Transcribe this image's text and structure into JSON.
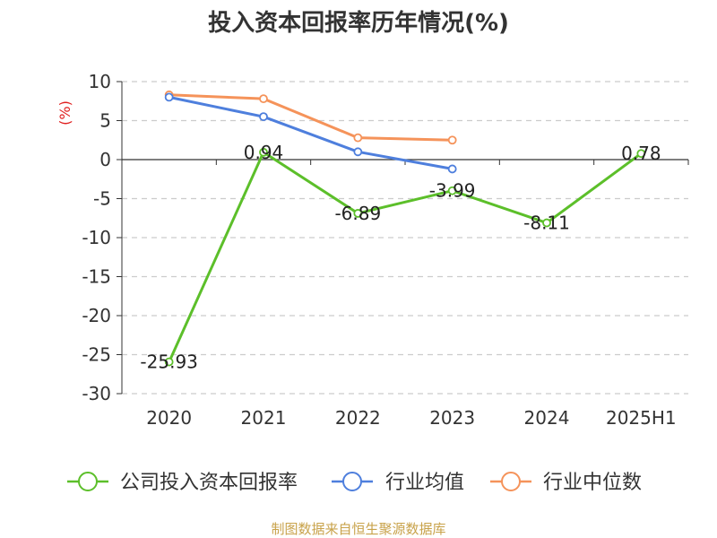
{
  "chart_data": {
    "type": "line",
    "title": "投入资本回报率历年情况(%)",
    "ylabel": "(%)",
    "xlabel": "",
    "ylim": [
      -30,
      10
    ],
    "yticks": [
      10,
      5,
      0,
      -5,
      -10,
      -15,
      -20,
      -25,
      -30
    ],
    "categories": [
      "2020",
      "2021",
      "2022",
      "2023",
      "2024",
      "2025H1"
    ],
    "grid": true,
    "legend_position": "bottom",
    "series": [
      {
        "name": "公司投入资本回报率",
        "color": "#5cbf2a",
        "values": [
          -25.93,
          0.94,
          -6.89,
          -3.99,
          -8.11,
          0.78
        ],
        "labels": [
          "-25.93",
          "0.94",
          "-6.89",
          "-3.99",
          "-8.11",
          "0.78"
        ]
      },
      {
        "name": "行业均值",
        "color": "#4e7fdd",
        "values": [
          8.0,
          5.5,
          1.0,
          -1.2,
          null,
          null
        ]
      },
      {
        "name": "行业中位数",
        "color": "#f5935a",
        "values": [
          8.3,
          7.8,
          2.8,
          2.5,
          null,
          null
        ]
      }
    ]
  },
  "footer": {
    "source": "制图数据来自恒生聚源数据库"
  },
  "colors": {
    "title": "#333333",
    "axis": "#333333",
    "grid": "#cccccc",
    "ylabel": "#e02020",
    "source": "#c8a24a"
  }
}
